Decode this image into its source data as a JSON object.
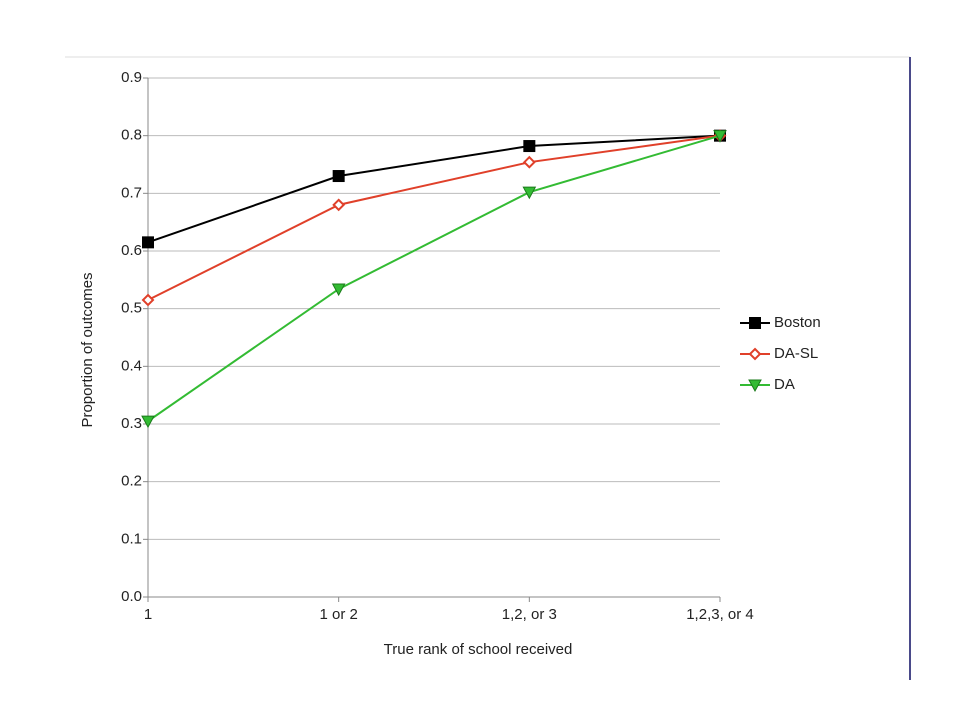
{
  "chart_data": {
    "type": "line",
    "x_label": "True rank of school received",
    "y_label": "Proportion of outcomes",
    "categories": [
      "1",
      "1 or 2",
      "1,2, or 3",
      "1,2,3, or 4"
    ],
    "series": [
      {
        "name": "Boston",
        "color": "#000000",
        "marker": "square",
        "values": [
          0.615,
          0.73,
          0.782,
          0.8
        ]
      },
      {
        "name": "DA-SL",
        "color": "#e0402a",
        "marker": "diamond",
        "values": [
          0.515,
          0.68,
          0.754,
          0.8
        ]
      },
      {
        "name": "DA",
        "color": "#33bb33",
        "marker": "triangle-down",
        "values": [
          0.305,
          0.534,
          0.702,
          0.8
        ]
      }
    ],
    "ylim": [
      0,
      0.9
    ],
    "yticks": [
      {
        "value": 0,
        "label": "0.0"
      },
      0.1,
      0.2,
      0.3,
      0.4,
      0.5,
      0.6,
      0.7,
      0.8,
      0.9
    ],
    "grid": true,
    "legend": "right"
  }
}
